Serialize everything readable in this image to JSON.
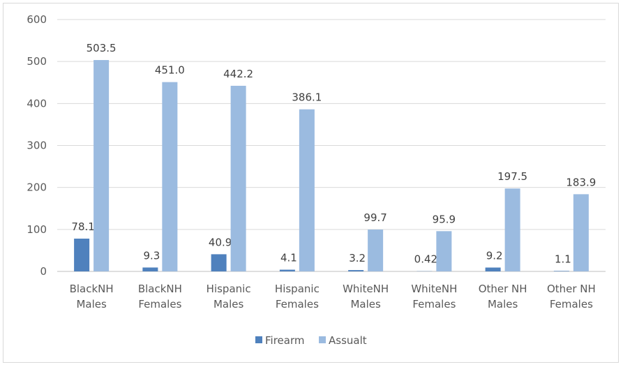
{
  "chart_data": {
    "type": "bar",
    "categories": [
      [
        "BlackNH",
        "Males"
      ],
      [
        "BlackNH",
        "Females"
      ],
      [
        "Hispanic",
        "Males"
      ],
      [
        "Hispanic",
        "Females"
      ],
      [
        "WhiteNH",
        "Males"
      ],
      [
        "WhiteNH",
        "Females"
      ],
      [
        "Other NH",
        "Males"
      ],
      [
        "Other NH",
        "Females"
      ]
    ],
    "series": [
      {
        "name": "Firearm",
        "color": "#4f81bd",
        "values": [
          78.1,
          9.3,
          40.9,
          4.1,
          3.2,
          0.42,
          9.2,
          1.1
        ],
        "labels": [
          "78.1",
          "9.3",
          "40.9",
          "4.1",
          "3.2",
          "0.42",
          "9.2",
          "1.1"
        ]
      },
      {
        "name": "Assualt",
        "color": "#9bbbe0",
        "values": [
          503.5,
          451.0,
          442.2,
          386.1,
          99.7,
          95.9,
          197.5,
          183.9
        ],
        "labels": [
          "503.5",
          "451.0",
          "442.2",
          "386.1",
          "99.7",
          "95.9",
          "197.5",
          "183.9"
        ]
      }
    ],
    "yticks": [
      "0",
      "100",
      "200",
      "300",
      "400",
      "500",
      "600"
    ],
    "ylim": [
      0,
      600
    ],
    "title": "",
    "xlabel": "",
    "ylabel": "",
    "grid": true,
    "legend": "bottom"
  }
}
